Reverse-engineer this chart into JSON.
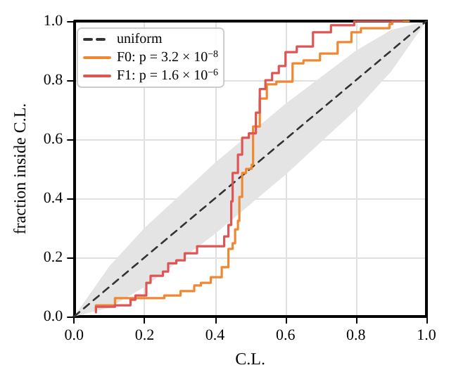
{
  "chart_data": {
    "type": "step",
    "xlabel": "C.L.",
    "ylabel": "fraction inside C.L.",
    "xlim": [
      0,
      1
    ],
    "ylim": [
      0,
      1
    ],
    "xticks": [
      {
        "value": 0,
        "label": "0.0"
      },
      {
        "value": 0.2,
        "label": "0.2"
      },
      {
        "value": 0.4,
        "label": "0.4"
      },
      {
        "value": 0.6,
        "label": "0.6"
      },
      {
        "value": 0.8,
        "label": "0.8"
      },
      {
        "value": 1,
        "label": "1.0"
      }
    ],
    "yticks": [
      {
        "value": 0,
        "label": "0.0"
      },
      {
        "value": 0.2,
        "label": "0.2"
      },
      {
        "value": 0.4,
        "label": "0.4"
      },
      {
        "value": 0.6,
        "label": "0.6"
      },
      {
        "value": 0.8,
        "label": "0.8"
      },
      {
        "value": 1,
        "label": "1.0"
      }
    ],
    "grid": true,
    "legend": "top left",
    "marker": "none",
    "series": [
      {
        "name": "uniform",
        "type": "line",
        "line_style": "dashed",
        "color": "#333333",
        "x": [
          0,
          0.1,
          0.2,
          0.3,
          0.4,
          0.5,
          0.6,
          0.7,
          0.8,
          0.9,
          1
        ],
        "values": [
          0,
          0.1,
          0.2,
          0.3,
          0.4,
          0.5,
          0.6,
          0.7,
          0.8,
          0.9,
          1
        ],
        "lower": [
          0,
          0.03,
          0.1,
          0.19,
          0.28,
          0.38,
          0.48,
          0.59,
          0.7,
          0.83,
          1
        ],
        "upper": [
          0,
          0.17,
          0.3,
          0.41,
          0.52,
          0.62,
          0.72,
          0.81,
          0.9,
          0.97,
          1
        ]
      },
      {
        "name": "F0: p = 3.2 × 10$^{−8}$",
        "color": "#ee8833",
        "x": [
          0.062,
          0.116,
          0.256,
          0.302,
          0.341,
          0.36,
          0.388,
          0.419,
          0.438,
          0.45,
          0.457,
          0.465,
          0.469,
          0.477,
          0.488,
          0.504,
          0.508,
          0.527,
          0.547,
          0.574,
          0.62,
          0.651,
          0.698,
          0.748,
          0.787,
          0.814,
          0.895,
          0.903,
          0.95
        ],
        "values": [
          0.024,
          0.038,
          0.062,
          0.071,
          0.086,
          0.105,
          0.114,
          0.133,
          0.167,
          0.229,
          0.248,
          0.295,
          0.324,
          0.405,
          0.486,
          0.5,
          0.514,
          0.643,
          0.738,
          0.786,
          0.795,
          0.857,
          0.867,
          0.89,
          0.929,
          0.962,
          0.976,
          0.99,
          1
        ]
      },
      {
        "name": "F1: p = 1.6 × 10$^{−6}$",
        "color": "#dd5555",
        "x": [
          0.062,
          0.116,
          0.16,
          0.174,
          0.205,
          0.217,
          0.252,
          0.267,
          0.29,
          0.314,
          0.349,
          0.426,
          0.438,
          0.446,
          0.45,
          0.465,
          0.477,
          0.496,
          0.516,
          0.527,
          0.543,
          0.562,
          0.581,
          0.6,
          0.632,
          0.678,
          0.729,
          0.795,
          0.93
        ],
        "values": [
          0.014,
          0.033,
          0.038,
          0.057,
          0.071,
          0.114,
          0.138,
          0.152,
          0.18,
          0.19,
          0.214,
          0.238,
          0.271,
          0.31,
          0.39,
          0.486,
          0.548,
          0.605,
          0.62,
          0.69,
          0.77,
          0.8,
          0.824,
          0.848,
          0.895,
          0.914,
          0.962,
          0.986,
          1
        ]
      }
    ]
  }
}
